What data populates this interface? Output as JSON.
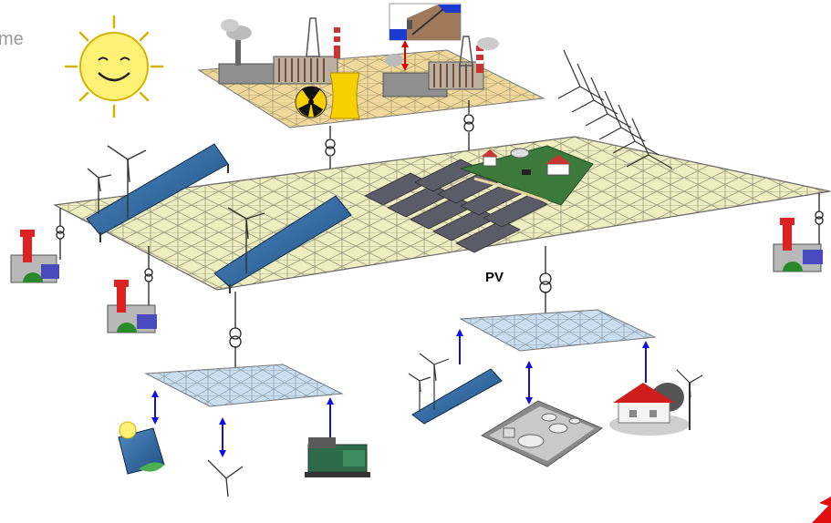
{
  "labels": {
    "clipped_heading": "me",
    "pv": "PV"
  },
  "icons": {
    "sun": "sun-icon",
    "nuclear": "radiation-icon",
    "transformer": "transformer-icon",
    "wind": "wind-turbine-icon",
    "solar": "solar-panel-icon",
    "chp": "chp-plant-icon",
    "biogas": "biogas-plant-icon",
    "house": "house-icon",
    "generator": "diesel-generator-icon",
    "hydro": "pumped-hydro-icon"
  },
  "colors": {
    "grid_main": "#eeeec0",
    "grid_low": "#c9def0",
    "grid_line": "#9a9a80",
    "arrow": "#1010e0",
    "hydro_arrow": "#e00000",
    "sun": "#fff176"
  }
}
